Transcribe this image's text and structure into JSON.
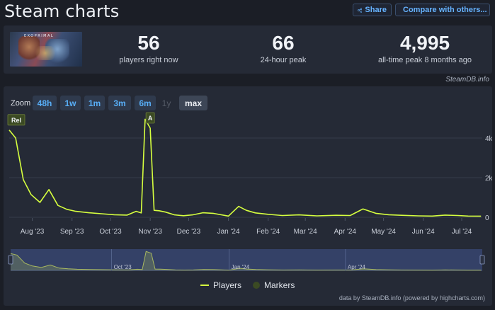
{
  "header": {
    "title": "Steam charts",
    "share_label": "Share",
    "compare_label": "Compare with others..."
  },
  "stats": {
    "now_value": "56",
    "now_label": "players right now",
    "peak24_value": "66",
    "peak24_label": "24-hour peak",
    "alltime_value": "4,995",
    "alltime_label": "all-time peak 8 months ago"
  },
  "thumbnail": {
    "logo_text": "EXOPRIMAL"
  },
  "steamdb_note": "SteamDB.info",
  "zoom": {
    "label": "Zoom",
    "options": [
      "48h",
      "1w",
      "1m",
      "3m",
      "6m",
      "1y",
      "max"
    ],
    "selected": "max",
    "disabled": [
      "1y"
    ]
  },
  "chart_data": {
    "type": "line",
    "x_unit": "date",
    "x_ticks": [
      "Aug '23",
      "Sep '23",
      "Oct '23",
      "Nov '23",
      "Dec '23",
      "Jan '24",
      "Feb '24",
      "Mar '24",
      "Apr '24",
      "May '24",
      "Jun '24",
      "Jul '24"
    ],
    "y_ticks": [
      "0",
      "2k",
      "4k"
    ],
    "ylim": [
      0,
      5000
    ],
    "series": [
      {
        "name": "Players",
        "color": "#d6ff3f",
        "x": [
          "2023-07-14",
          "2023-07-19",
          "2023-07-25",
          "2023-07-31",
          "2023-08-07",
          "2023-08-14",
          "2023-08-21",
          "2023-08-28",
          "2023-09-04",
          "2023-09-14",
          "2023-09-24",
          "2023-10-04",
          "2023-10-14",
          "2023-10-21",
          "2023-10-25",
          "2023-10-28",
          "2023-11-01",
          "2023-11-04",
          "2023-11-08",
          "2023-11-13",
          "2023-11-20",
          "2023-11-27",
          "2023-12-04",
          "2023-12-12",
          "2023-12-20",
          "2024-01-01",
          "2024-01-09",
          "2024-01-15",
          "2024-01-22",
          "2024-02-01",
          "2024-02-12",
          "2024-02-25",
          "2024-03-10",
          "2024-03-25",
          "2024-04-05",
          "2024-04-15",
          "2024-04-25",
          "2024-05-05",
          "2024-05-15",
          "2024-05-28",
          "2024-06-08",
          "2024-06-18",
          "2024-06-28",
          "2024-07-06",
          "2024-07-16"
        ],
        "values": [
          4400,
          4000,
          1900,
          1150,
          750,
          1400,
          600,
          400,
          300,
          230,
          180,
          130,
          110,
          300,
          220,
          4950,
          4500,
          350,
          330,
          260,
          120,
          80,
          120,
          230,
          200,
          60,
          550,
          350,
          220,
          150,
          90,
          120,
          70,
          100,
          90,
          420,
          200,
          130,
          100,
          70,
          60,
          110,
          90,
          60,
          56
        ]
      }
    ],
    "legend": {
      "players": "Players",
      "markers": "Markers"
    },
    "markers": [
      {
        "label": "Rel",
        "date": "2023-07-14"
      },
      {
        "label": "A",
        "date": "2023-11-01"
      }
    ],
    "navigator_ticks": [
      "Oct '23",
      "Jan '24",
      "Apr '24"
    ]
  },
  "credits": "data by SteamDB.info (powered by highcharts.com)"
}
